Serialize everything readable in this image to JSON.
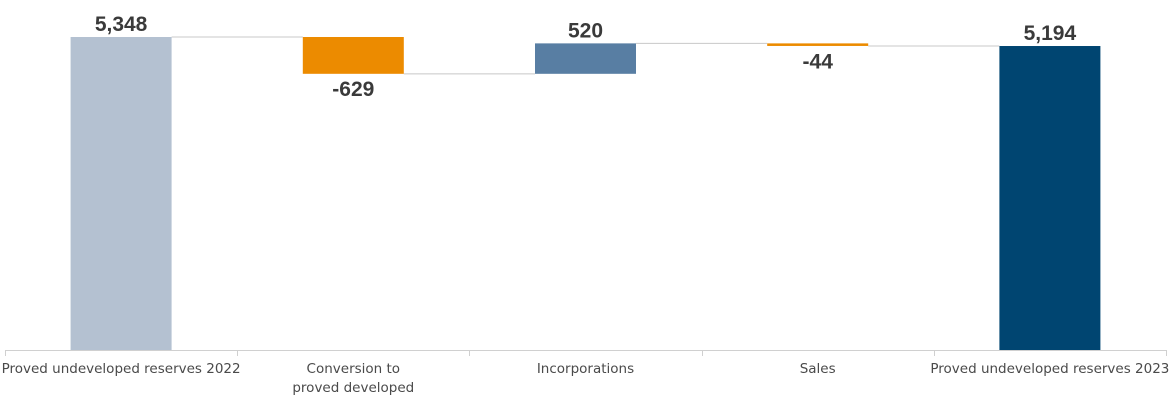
{
  "chart_data": {
    "type": "bar",
    "subtype": "waterfall",
    "title": "",
    "xlabel": "",
    "ylabel": "",
    "categories": [
      "Proved undeveloped reserves 2022",
      "Conversion to proved developed",
      "Incorporations",
      "Sales",
      "Proved undeveloped reserves 2023"
    ],
    "category_lines": [
      [
        "Proved undeveloped reserves 2022"
      ],
      [
        "Conversion to",
        "proved developed"
      ],
      [
        "Incorporations"
      ],
      [
        "Sales"
      ],
      [
        "Proved undeveloped reserves 2023"
      ]
    ],
    "values": [
      5348,
      -629,
      520,
      -44,
      5194
    ],
    "value_labels": [
      "5,348",
      "-629",
      "520",
      "-44",
      "5,194"
    ],
    "kinds": [
      "total",
      "delta",
      "delta",
      "delta",
      "total"
    ],
    "ylim": [
      0,
      5348
    ],
    "grid": false,
    "legend": "none",
    "connectors": true,
    "colors": {
      "start_total": "#b4c1d1",
      "decrease": "#ec8b00",
      "increase": "#587ea3",
      "end_total": "#004571",
      "connector": "#c8c8c8",
      "axis": "#d0d0d0",
      "label_text": "#3a3a3a",
      "tick_text": "#4a4a4a"
    }
  }
}
